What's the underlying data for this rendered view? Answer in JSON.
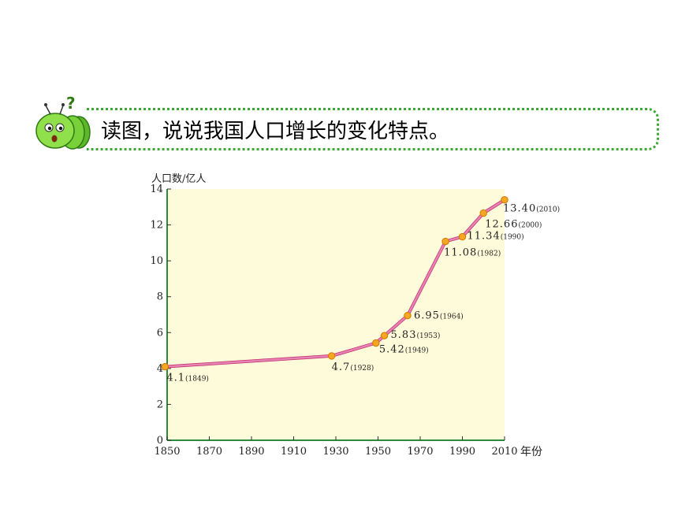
{
  "prompt": {
    "text": "读图，说说我国人口增长的变化特点。",
    "question_mark": "?"
  },
  "chart_data": {
    "type": "line",
    "title": "",
    "xlabel": "年份",
    "ylabel": "人口数/亿人",
    "xlim": [
      1850,
      2010
    ],
    "ylim": [
      0,
      14
    ],
    "x_ticks": [
      1850,
      1870,
      1890,
      1910,
      1930,
      1950,
      1970,
      1990,
      2010
    ],
    "y_ticks": [
      0,
      2,
      4,
      6,
      8,
      10,
      12,
      14
    ],
    "grid": false,
    "colors": {
      "plot_bg": "#fdfbd9",
      "line": "#e882b4",
      "marker": "#f5a623",
      "axis": "#2e8b3e"
    },
    "series": [
      {
        "points": [
          {
            "x": 1849,
            "y": 4.1,
            "value_label": "4.1",
            "year_label": "(1849)"
          },
          {
            "x": 1928,
            "y": 4.7,
            "value_label": "4.7",
            "year_label": "(1928)"
          },
          {
            "x": 1949,
            "y": 5.42,
            "value_label": "5.42",
            "year_label": "(1949)"
          },
          {
            "x": 1953,
            "y": 5.83,
            "value_label": "5.83",
            "year_label": "(1953)"
          },
          {
            "x": 1964,
            "y": 6.95,
            "value_label": "6.95",
            "year_label": "(1964)"
          },
          {
            "x": 1982,
            "y": 11.08,
            "value_label": "11.08",
            "year_label": "(1982)"
          },
          {
            "x": 1990,
            "y": 11.34,
            "value_label": "11.34",
            "year_label": "(1990)"
          },
          {
            "x": 2000,
            "y": 12.66,
            "value_label": "12.66",
            "year_label": "(2000)"
          },
          {
            "x": 2010,
            "y": 13.4,
            "value_label": "13.40",
            "year_label": "(2010)"
          }
        ]
      }
    ]
  }
}
